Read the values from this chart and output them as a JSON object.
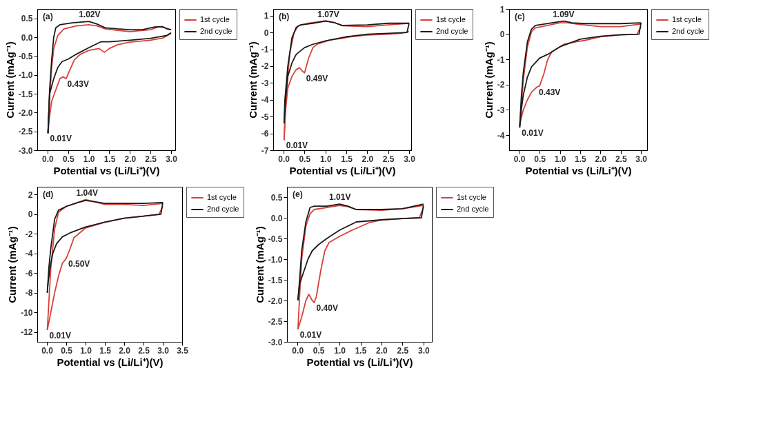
{
  "chart_data": [
    {
      "type": "line",
      "xlabel": "Potential vs (Li/Li⁺)(V)",
      "ylabel": "Current (mAg⁻¹)",
      "xlim": [
        -0.25,
        3.1
      ],
      "xticks": [
        {
          "value": 0,
          "label": "0.0"
        },
        0.5,
        {
          "value": 1,
          "label": "1.0"
        },
        1.5,
        {
          "value": 2,
          "label": "2.0"
        },
        2.5,
        {
          "value": 3,
          "label": "3.0"
        }
      ],
      "ylim": [
        -3.0,
        0.75
      ],
      "yticks": [
        {
          "value": -3,
          "label": "-3.0"
        },
        -2.5,
        {
          "value": -2,
          "label": "-2.0"
        },
        -1.5,
        {
          "value": -1,
          "label": "-1.0"
        },
        -0.5,
        {
          "value": 0,
          "label": "0.0"
        },
        0.5
      ],
      "legend": "right",
      "grid": false,
      "line_style": "solid",
      "annotations": [
        "(a)",
        {
          "text": "1.02V",
          "x": 1.02,
          "y": 0.42
        },
        {
          "text": "0.43V",
          "x": 0.43,
          "y": -1.1
        },
        {
          "text": "0.01V",
          "x": 0.01,
          "y": -2.55
        }
      ],
      "series": [
        {
          "name": "1st cycle",
          "color": "#d8413a",
          "x": [
            0.01,
            0.05,
            0.1,
            0.2,
            0.3,
            0.38,
            0.45,
            0.55,
            0.65,
            0.8,
            1.0,
            1.25,
            1.38,
            1.5,
            1.7,
            2.0,
            2.5,
            2.8,
            3.0
          ],
          "values": [
            -2.55,
            -2.1,
            -1.7,
            -1.4,
            -1.1,
            -1.05,
            -1.1,
            -0.85,
            -0.6,
            -0.45,
            -0.35,
            -0.3,
            -0.4,
            -0.3,
            -0.2,
            -0.13,
            -0.08,
            -0.02,
            0.1
          ]
        },
        {
          "color": "#d8413a",
          "x": [
            0.01,
            0.05,
            0.1,
            0.15,
            0.25,
            0.4,
            0.7,
            1.0,
            1.2,
            1.4,
            1.7,
            2.0,
            2.5,
            2.7,
            2.85,
            3.0
          ],
          "values": [
            -2.55,
            -1.6,
            -0.8,
            -0.3,
            0.05,
            0.22,
            0.3,
            0.33,
            0.3,
            0.22,
            0.18,
            0.15,
            0.2,
            0.28,
            0.25,
            0.2
          ]
        },
        {
          "name": "2nd cycle",
          "color": "#1a1a1a",
          "x": [
            0.01,
            0.05,
            0.15,
            0.25,
            0.35,
            0.5,
            0.7,
            1.0,
            1.3,
            1.5,
            2.0,
            2.5,
            2.9,
            3.0
          ],
          "values": [
            -2.55,
            -1.5,
            -1.1,
            -0.8,
            -0.65,
            -0.58,
            -0.45,
            -0.28,
            -0.12,
            -0.12,
            -0.08,
            -0.03,
            0.05,
            0.12
          ]
        },
        {
          "color": "#1a1a1a",
          "x": [
            0.01,
            0.05,
            0.1,
            0.15,
            0.2,
            0.3,
            0.6,
            1.0,
            1.2,
            1.4,
            1.7,
            2.0,
            2.3,
            2.6,
            2.8,
            2.9,
            3.0
          ],
          "values": [
            -2.55,
            -1.4,
            -0.6,
            0.0,
            0.25,
            0.33,
            0.38,
            0.42,
            0.35,
            0.25,
            0.22,
            0.2,
            0.2,
            0.27,
            0.28,
            0.22,
            0.2
          ]
        }
      ]
    },
    {
      "type": "line",
      "xlabel": "Potential vs (Li/Li⁺)(V)",
      "ylabel": "Current (mAg⁻¹)",
      "xlim": [
        -0.25,
        3.05
      ],
      "xticks": [
        {
          "value": 0,
          "label": "0.0"
        },
        0.5,
        {
          "value": 1,
          "label": "1.0"
        },
        1.5,
        {
          "value": 2,
          "label": "2.0"
        },
        2.5,
        {
          "value": 3,
          "label": "3.0"
        }
      ],
      "ylim": [
        -7,
        1.4
      ],
      "yticks": [
        -7,
        -6,
        -5,
        -4,
        -3,
        -2,
        -1,
        0,
        1
      ],
      "legend": "right",
      "grid": false,
      "line_style": "solid",
      "annotations": [
        "(b)",
        {
          "text": "1.07V",
          "x": 1.07,
          "y": 0.65
        },
        {
          "text": "0.49V",
          "x": 0.49,
          "y": -2.4
        },
        {
          "text": "0.01V",
          "x": 0.01,
          "y": -6.4
        }
      ],
      "series": [
        {
          "name": "1st cycle",
          "color": "#d8413a",
          "x": [
            0.01,
            0.05,
            0.1,
            0.2,
            0.3,
            0.38,
            0.45,
            0.5,
            0.6,
            0.7,
            0.8,
            1.1,
            1.4,
            1.6,
            2.0,
            2.5,
            2.8,
            3.0
          ],
          "values": [
            -6.4,
            -4.5,
            -3.3,
            -2.6,
            -2.2,
            -2.1,
            -2.3,
            -2.4,
            -1.5,
            -0.9,
            -0.7,
            -0.45,
            -0.35,
            -0.25,
            -0.15,
            -0.1,
            -0.05,
            0.05
          ]
        },
        {
          "color": "#d8413a",
          "x": [
            0.01,
            0.03,
            0.08,
            0.15,
            0.25,
            0.35,
            0.6,
            1.0,
            1.2,
            1.4,
            2.0,
            2.5,
            3.0
          ],
          "values": [
            -6.4,
            -5.0,
            -3.0,
            -1.2,
            0.0,
            0.4,
            0.55,
            0.7,
            0.6,
            0.4,
            0.35,
            0.45,
            0.55
          ]
        },
        {
          "name": "2nd cycle",
          "color": "#1a1a1a",
          "x": [
            0.01,
            0.05,
            0.1,
            0.2,
            0.3,
            0.5,
            0.7,
            1.0,
            1.5,
            2.0,
            2.5,
            2.95,
            3.0
          ],
          "values": [
            -5.4,
            -3.8,
            -2.6,
            -1.8,
            -1.3,
            -0.9,
            -0.7,
            -0.5,
            -0.25,
            -0.1,
            -0.05,
            0.0,
            0.55
          ]
        },
        {
          "color": "#1a1a1a",
          "x": [
            0.01,
            0.03,
            0.1,
            0.2,
            0.3,
            0.4,
            0.7,
            1.0,
            1.2,
            1.4,
            2.0,
            2.5,
            3.0
          ],
          "values": [
            -5.4,
            -4.0,
            -2.0,
            -0.3,
            0.3,
            0.45,
            0.55,
            0.68,
            0.6,
            0.42,
            0.45,
            0.55,
            0.55
          ]
        }
      ]
    },
    {
      "type": "line",
      "xlabel": "Potential vs (Li/Li⁺)(V)",
      "ylabel": "Current (mAg⁻¹)",
      "xlim": [
        -0.25,
        3.15
      ],
      "xticks": [
        {
          "value": 0,
          "label": "0.0"
        },
        0.5,
        {
          "value": 1,
          "label": "1.0"
        },
        1.5,
        {
          "value": 2,
          "label": "2.0"
        },
        2.5,
        {
          "value": 3,
          "label": "3.0"
        }
      ],
      "ylim": [
        -4.6,
        1
      ],
      "yticks": [
        -4,
        -3,
        -2,
        -1,
        0,
        1
      ],
      "legend": "right",
      "grid": false,
      "line_style": "solid",
      "annotations": [
        "(c)",
        {
          "text": "1.09V",
          "x": 1.09,
          "y": 0.52
        },
        {
          "text": "0.43V",
          "x": 0.43,
          "y": -2.1
        },
        {
          "text": "0.01V",
          "x": 0.01,
          "y": -3.7
        }
      ],
      "series": [
        {
          "name": "1st cycle",
          "color": "#d8413a",
          "x": [
            0.01,
            0.05,
            0.1,
            0.2,
            0.3,
            0.43,
            0.5,
            0.6,
            0.7,
            0.8,
            1.1,
            1.4,
            1.6,
            2.0,
            2.5,
            2.9,
            3.0
          ],
          "values": [
            -3.6,
            -3.3,
            -3.0,
            -2.6,
            -2.3,
            -2.1,
            -2.05,
            -1.6,
            -1.0,
            -0.7,
            -0.4,
            -0.3,
            -0.25,
            -0.1,
            -0.03,
            0.0,
            0.3
          ]
        },
        {
          "color": "#d8413a",
          "x": [
            0.01,
            0.05,
            0.1,
            0.2,
            0.3,
            0.4,
            0.7,
            1.0,
            1.2,
            1.5,
            2.0,
            2.5,
            3.0
          ],
          "values": [
            -3.6,
            -2.8,
            -1.8,
            -0.5,
            0.1,
            0.25,
            0.35,
            0.45,
            0.45,
            0.38,
            0.3,
            0.3,
            0.4
          ]
        },
        {
          "name": "2nd cycle",
          "color": "#1a1a1a",
          "x": [
            0.01,
            0.05,
            0.1,
            0.2,
            0.3,
            0.5,
            0.7,
            1.0,
            1.5,
            2.0,
            2.5,
            2.95,
            3.0
          ],
          "values": [
            -3.7,
            -3.0,
            -2.4,
            -1.7,
            -1.3,
            -0.95,
            -0.8,
            -0.5,
            -0.2,
            -0.08,
            -0.02,
            0.0,
            0.45
          ]
        },
        {
          "color": "#1a1a1a",
          "x": [
            0.01,
            0.05,
            0.1,
            0.2,
            0.3,
            0.4,
            0.7,
            1.0,
            1.1,
            1.3,
            1.6,
            2.0,
            2.5,
            3.0
          ],
          "values": [
            -3.7,
            -2.5,
            -1.5,
            -0.3,
            0.2,
            0.35,
            0.42,
            0.5,
            0.52,
            0.45,
            0.42,
            0.42,
            0.42,
            0.45
          ]
        }
      ]
    },
    {
      "type": "line",
      "xlabel": "Potential vs (Li/Li⁺)(V)",
      "ylabel": "Current (mAg⁻¹)",
      "xlim": [
        -0.25,
        3.5
      ],
      "xticks": [
        {
          "value": 0,
          "label": "0.0"
        },
        0.5,
        {
          "value": 1,
          "label": "1.0"
        },
        1.5,
        {
          "value": 2,
          "label": "2.0"
        },
        2.5,
        {
          "value": 3,
          "label": "3.0"
        },
        3.5
      ],
      "ylim": [
        -13,
        2.8
      ],
      "yticks": [
        -12,
        -10,
        -8,
        -6,
        -4,
        -2,
        0,
        2
      ],
      "legend": "right",
      "grid": false,
      "line_style": "solid",
      "annotations": [
        "(d)",
        {
          "text": "1.04V",
          "x": 1.04,
          "y": 1.5
        },
        {
          "text": "0.50V",
          "x": 0.5,
          "y": -4.5
        },
        {
          "text": "0.01V",
          "x": 0.01,
          "y": -11.8
        }
      ],
      "series": [
        {
          "name": "1st cycle",
          "color": "#d8413a",
          "x": [
            0.01,
            0.05,
            0.1,
            0.2,
            0.3,
            0.4,
            0.5,
            0.6,
            0.7,
            1.0,
            1.5,
            2.0,
            2.5,
            2.9,
            3.0
          ],
          "values": [
            -11.8,
            -11.0,
            -10.0,
            -8.0,
            -6.3,
            -5.0,
            -4.5,
            -3.5,
            -2.4,
            -1.4,
            -0.8,
            -0.4,
            -0.2,
            0.0,
            0.8
          ]
        },
        {
          "color": "#d8413a",
          "x": [
            0.01,
            0.05,
            0.1,
            0.2,
            0.3,
            0.5,
            0.8,
            1.0,
            1.2,
            1.5,
            2.0,
            2.5,
            3.0
          ],
          "values": [
            -11.8,
            -9.0,
            -5.5,
            -1.5,
            0.2,
            0.8,
            1.2,
            1.5,
            1.3,
            1.0,
            1.0,
            0.9,
            1.1
          ]
        },
        {
          "name": "2nd cycle",
          "color": "#1a1a1a",
          "x": [
            0.01,
            0.03,
            0.08,
            0.15,
            0.25,
            0.4,
            0.6,
            1.0,
            1.5,
            2.0,
            2.5,
            2.95,
            3.0
          ],
          "values": [
            -8.0,
            -7.0,
            -5.5,
            -4.0,
            -3.0,
            -2.3,
            -1.9,
            -1.3,
            -0.8,
            -0.4,
            -0.2,
            0.0,
            1.2
          ]
        },
        {
          "color": "#1a1a1a",
          "x": [
            0.01,
            0.05,
            0.1,
            0.2,
            0.3,
            0.5,
            0.8,
            1.0,
            1.2,
            1.5,
            2.0,
            2.5,
            3.0
          ],
          "values": [
            -8.0,
            -5.5,
            -3.5,
            -0.5,
            0.4,
            0.8,
            1.2,
            1.4,
            1.3,
            1.1,
            1.1,
            1.1,
            1.2
          ]
        }
      ]
    },
    {
      "type": "line",
      "xlabel": "Potential vs (Li/Li⁺)(V)",
      "ylabel": "Current (mAg⁻¹)",
      "xlim": [
        -0.25,
        3.2
      ],
      "xticks": [
        {
          "value": 0,
          "label": "0.0"
        },
        0.5,
        {
          "value": 1,
          "label": "1.0"
        },
        1.5,
        {
          "value": 2,
          "label": "2.0"
        },
        2.5,
        {
          "value": 3,
          "label": "3.0"
        }
      ],
      "ylim": [
        -3.0,
        0.75
      ],
      "yticks": [
        {
          "value": -3,
          "label": "-3.0"
        },
        -2.5,
        {
          "value": -2,
          "label": "-2.0"
        },
        -1.5,
        {
          "value": -1,
          "label": "-1.0"
        },
        -0.5,
        {
          "value": 0,
          "label": "0.0"
        },
        0.5
      ],
      "legend": "right",
      "grid": false,
      "line_style": "solid",
      "annotations": [
        "(e)",
        {
          "text": "1.01V",
          "x": 1.01,
          "y": 0.33
        },
        {
          "text": "0.40V",
          "x": 0.4,
          "y": -2.05
        },
        {
          "text": "0.01V",
          "x": 0.01,
          "y": -2.7
        }
      ],
      "series": [
        {
          "name": "1st cycle",
          "color": "#d8413a",
          "x": [
            0.01,
            0.1,
            0.2,
            0.27,
            0.35,
            0.4,
            0.45,
            0.55,
            0.65,
            0.75,
            1.0,
            1.3,
            1.7,
            2.0,
            2.5,
            2.9,
            3.0
          ],
          "values": [
            -2.7,
            -2.4,
            -2.0,
            -1.85,
            -2.0,
            -2.05,
            -1.9,
            -1.3,
            -0.8,
            -0.6,
            -0.45,
            -0.3,
            -0.12,
            -0.05,
            -0.02,
            0.0,
            0.25
          ]
        },
        {
          "color": "#d8413a",
          "x": [
            0.01,
            0.05,
            0.1,
            0.2,
            0.3,
            0.4,
            0.7,
            1.0,
            1.2,
            1.4,
            2.0,
            2.5,
            3.0
          ],
          "values": [
            -2.7,
            -1.9,
            -1.0,
            -0.2,
            0.1,
            0.2,
            0.25,
            0.3,
            0.27,
            0.2,
            0.18,
            0.22,
            0.3
          ]
        },
        {
          "name": "2nd cycle",
          "color": "#1a1a1a",
          "x": [
            0.01,
            0.05,
            0.15,
            0.25,
            0.35,
            0.5,
            0.7,
            1.0,
            1.4,
            2.0,
            2.5,
            2.95,
            3.0
          ],
          "values": [
            -2.0,
            -1.6,
            -1.3,
            -1.0,
            -0.8,
            -0.65,
            -0.5,
            -0.3,
            -0.1,
            -0.05,
            -0.02,
            0.0,
            0.3
          ]
        },
        {
          "color": "#1a1a1a",
          "x": [
            0.01,
            0.05,
            0.1,
            0.2,
            0.3,
            0.4,
            0.7,
            1.0,
            1.2,
            1.4,
            2.0,
            2.5,
            3.0
          ],
          "values": [
            -2.0,
            -1.5,
            -0.8,
            -0.1,
            0.25,
            0.28,
            0.28,
            0.33,
            0.28,
            0.2,
            0.2,
            0.22,
            0.33
          ]
        }
      ]
    }
  ]
}
